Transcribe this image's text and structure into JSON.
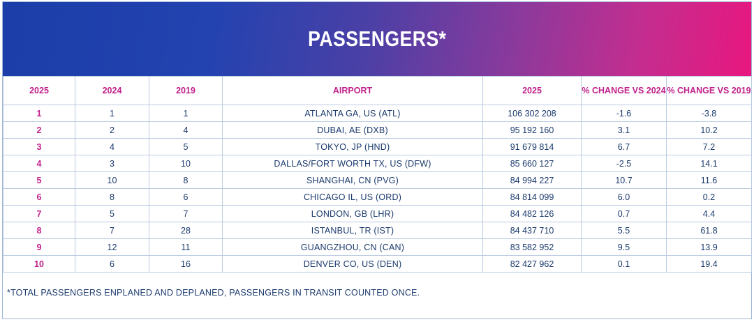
{
  "title": "PASSENGERS*",
  "columns": [
    "2025",
    "2024",
    "2019",
    "AIRPORT",
    "2025",
    "% CHANGE VS 2024",
    "% CHANGE VS 2019"
  ],
  "rows": [
    [
      "1",
      "1",
      "1",
      "ATLANTA GA, US (ATL)",
      "106 302 208",
      "-1.6",
      "-3.8"
    ],
    [
      "2",
      "2",
      "4",
      "DUBAI, AE (DXB)",
      "95 192 160",
      "3.1",
      "10.2"
    ],
    [
      "3",
      "4",
      "5",
      "TOKYO, JP (HND)",
      "91 679 814",
      "6.7",
      "7.2"
    ],
    [
      "4",
      "3",
      "10",
      "DALLAS/FORT WORTH TX, US (DFW)",
      "85 660 127",
      "-2.5",
      "14.1"
    ],
    [
      "5",
      "10",
      "8",
      "SHANGHAI, CN (PVG)",
      "84 994 227",
      "10.7",
      "11.6"
    ],
    [
      "6",
      "8",
      "6",
      "CHICAGO IL, US (ORD)",
      "84 814 099",
      "6.0",
      "0.2"
    ],
    [
      "7",
      "5",
      "7",
      "LONDON, GB (LHR)",
      "84 482 126",
      "0.7",
      "4.4"
    ],
    [
      "8",
      "7",
      "28",
      "ISTANBUL, TR (IST)",
      "84 437 710",
      "5.5",
      "61.8"
    ],
    [
      "9",
      "12",
      "11",
      "GUANGZHOU, CN (CAN)",
      "83 582 952",
      "9.5",
      "13.9"
    ],
    [
      "10",
      "6",
      "16",
      "DENVER CO, US (DEN)",
      "82 427 962",
      "0.1",
      "19.4"
    ]
  ],
  "footnote": "*TOTAL PASSENGERS ENPLANED AND DEPLANED, PASSENGERS IN TRANSIT COUNTED ONCE.",
  "colors": {
    "header_text": "#c0218b",
    "body_text": "#1b3a6d",
    "banner_start": "#1b3ea8",
    "banner_end": "#e8177f",
    "grid": "#b9cbe1"
  }
}
